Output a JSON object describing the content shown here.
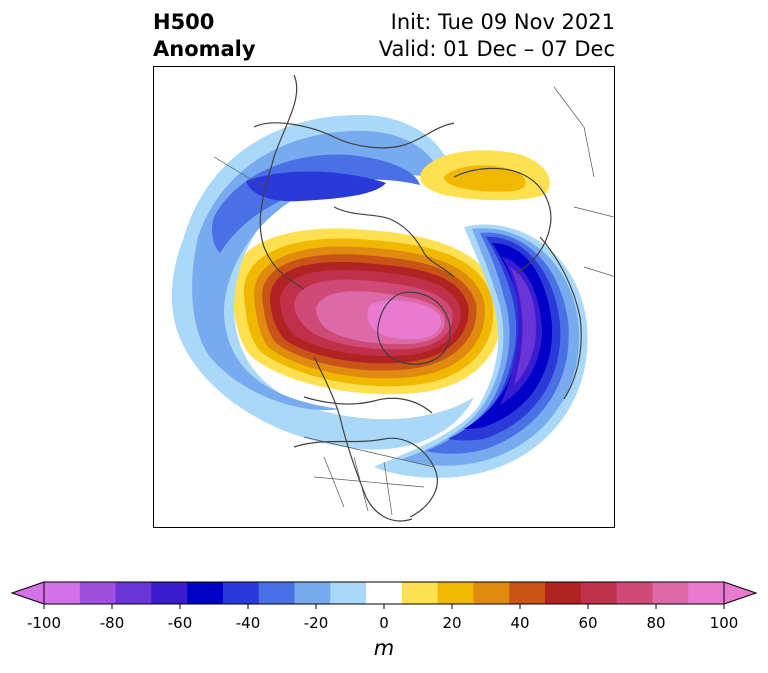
{
  "title": {
    "left_line1": "H500",
    "left_line2": "Anomaly",
    "right_line1": "Init: Tue 09 Nov 2021",
    "right_line2": "Valid: 01 Dec – 07 Dec"
  },
  "colorbar": {
    "unit": "m",
    "ticks": [
      "-100",
      "-80",
      "-60",
      "-40",
      "-20",
      "0",
      "20",
      "40",
      "60",
      "80",
      "100"
    ],
    "levels": [
      -100,
      -90,
      -80,
      -70,
      -60,
      -50,
      -40,
      -30,
      -20,
      -10,
      10,
      20,
      30,
      40,
      50,
      60,
      70,
      80,
      90,
      100
    ],
    "colors": [
      "#d471e8",
      "#a050e0",
      "#6a34d8",
      "#3a1cd0",
      "#0000c8",
      "#2a3ad8",
      "#4a70e6",
      "#78aaf0",
      "#a9d8f8",
      "#ffffff",
      "#ffe050",
      "#f0b800",
      "#e08a10",
      "#c85418",
      "#b22222",
      "#c03048",
      "#d04a78",
      "#dc6aa8",
      "#e87ad2"
    ],
    "extend": "both"
  },
  "map": {
    "projection": "north-polar-stereographic",
    "field": "500 hPa geopotential height anomaly",
    "features": [
      {
        "name": "positive anomaly center over northern Canada / Arctic",
        "max_m": 100
      },
      {
        "name": "negative anomaly trough over eastern Canada / western Atlantic",
        "min_m": -70
      },
      {
        "name": "negative anomaly over Siberia",
        "min_m": -40
      },
      {
        "name": "positive anomaly over Scandinavia / northwest Russia",
        "max_m": 30
      }
    ]
  }
}
